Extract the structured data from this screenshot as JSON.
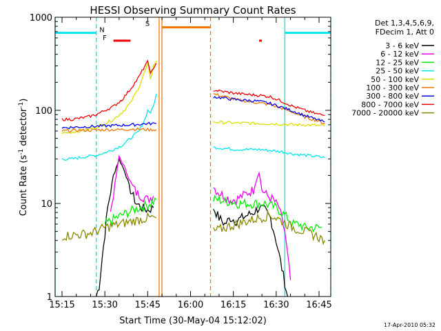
{
  "chart_data": {
    "type": "line",
    "title": "HESSI Observing Summary Count Rates",
    "xlabel": "Start Time (30-May-04 15:12:02)",
    "ylabel": "Count Rate (s",
    "ylabel_sup": "-1",
    "ylabel_mid": " detector",
    "ylabel_end": ")",
    "footer": "17-Apr-2010 05:32",
    "yscale": "log",
    "ylim": [
      1,
      1000
    ],
    "xlim_minutes": [
      15.17,
      16.83
    ],
    "x_ticks": [
      "15:15",
      "15:30",
      "15:45",
      "16:00",
      "16:15",
      "16:30",
      "16:45"
    ],
    "y_ticks": [
      "1",
      "10",
      "100",
      "1000"
    ],
    "legend_header": [
      "Det 1,3,4,5,6,9,",
      "FDecim 1, Att 0"
    ],
    "legend_placement": "right",
    "flags": [
      {
        "label": "N",
        "color": "#00e5ee",
        "level": 680,
        "intervals": [
          [
            "15:12",
            "15:27"
          ],
          [
            "16:33",
            "16:50"
          ]
        ]
      },
      {
        "label": "F",
        "color": "#ee0000",
        "level": 560,
        "intervals": [
          [
            "15:33",
            "15:39"
          ],
          [
            "16:24",
            "16:25"
          ]
        ]
      },
      {
        "label": "S",
        "color": "#ee7700",
        "level": 780,
        "intervals": [
          [
            "15:50",
            "16:07"
          ]
        ]
      }
    ],
    "markers": [
      {
        "type": "solid",
        "color": "#00e5ee",
        "time": "15:12"
      },
      {
        "type": "dashed",
        "color": "#00e5ee",
        "time": "15:27"
      },
      {
        "type": "solid",
        "color": "#ee7700",
        "time": "15:49"
      },
      {
        "type": "solid",
        "color": "#ee7700",
        "time": "15:50"
      },
      {
        "type": "dashed",
        "color": "#ee7700",
        "time": "16:07"
      },
      {
        "type": "solid",
        "color": "#00e5ee",
        "time": "16:33"
      },
      {
        "type": "dashed",
        "color": "#00e5ee",
        "time": "16:50"
      }
    ],
    "series": [
      {
        "name": "3 - 6 keV",
        "color": "#000000",
        "segments": [
          [
            [
              "15:27",
              1.0
            ],
            [
              "15:28",
              1.3
            ],
            [
              "15:29",
              2.5
            ],
            [
              "15:31",
              9
            ],
            [
              "15:33",
              20
            ],
            [
              "15:35",
              30
            ],
            [
              "15:37",
              22
            ],
            [
              "15:39",
              14
            ],
            [
              "15:41",
              10
            ],
            [
              "15:43",
              9
            ],
            [
              "15:45",
              8.5
            ],
            [
              "15:47",
              9
            ]
          ],
          [
            [
              "16:08",
              9
            ],
            [
              "16:10",
              7
            ],
            [
              "16:12",
              6
            ],
            [
              "16:14",
              7
            ],
            [
              "16:16",
              6.5
            ],
            [
              "16:18",
              7
            ],
            [
              "16:20",
              7.5
            ],
            [
              "16:22",
              8
            ],
            [
              "16:24",
              9
            ],
            [
              "16:26",
              8.5
            ],
            [
              "16:28",
              7
            ],
            [
              "16:30",
              4
            ],
            [
              "16:32",
              2
            ],
            [
              "16:34",
              1.0
            ]
          ]
        ]
      },
      {
        "name": "6 - 12 keV",
        "color": "#ee00ee",
        "segments": [
          [
            [
              "15:32",
              8
            ],
            [
              "15:34",
              20
            ],
            [
              "15:35",
              32
            ],
            [
              "15:37",
              24
            ],
            [
              "15:39",
              17
            ],
            [
              "15:41",
              13
            ],
            [
              "15:43",
              12
            ],
            [
              "15:45",
              11
            ],
            [
              "15:47",
              12
            ]
          ],
          [
            [
              "16:08",
              15
            ],
            [
              "16:10",
              13
            ],
            [
              "16:12",
              12
            ],
            [
              "16:14",
              11
            ],
            [
              "16:16",
              11
            ],
            [
              "16:18",
              12
            ],
            [
              "16:20",
              13
            ],
            [
              "16:22",
              14
            ],
            [
              "16:24",
              22
            ],
            [
              "16:25",
              14
            ],
            [
              "16:27",
              12
            ],
            [
              "16:29",
              11
            ],
            [
              "16:31",
              9
            ],
            [
              "16:33",
              5
            ],
            [
              "16:35",
              1.5
            ]
          ]
        ]
      },
      {
        "name": "12 - 25 keV",
        "color": "#00ee00",
        "segments": [
          [
            [
              "15:30",
              6
            ],
            [
              "15:32",
              6.5
            ],
            [
              "15:34",
              7
            ],
            [
              "15:36",
              7.5
            ],
            [
              "15:38",
              8
            ],
            [
              "15:40",
              8.5
            ],
            [
              "15:42",
              9
            ],
            [
              "15:44",
              9.5
            ],
            [
              "15:46",
              10
            ],
            [
              "15:48",
              11
            ]
          ],
          [
            [
              "16:08",
              11
            ],
            [
              "16:10",
              11
            ],
            [
              "16:12",
              10.5
            ],
            [
              "16:14",
              10.5
            ],
            [
              "16:16",
              10
            ],
            [
              "16:18",
              10
            ],
            [
              "16:20",
              10
            ],
            [
              "16:22",
              10
            ],
            [
              "16:24",
              10
            ],
            [
              "16:26",
              10
            ],
            [
              "16:28",
              9.5
            ],
            [
              "16:30",
              9
            ],
            [
              "16:32",
              8
            ],
            [
              "16:34",
              7
            ],
            [
              "16:36",
              6
            ],
            [
              "16:38",
              6
            ],
            [
              "16:40",
              5.5
            ],
            [
              "16:42",
              5.5
            ],
            [
              "16:44",
              5.5
            ],
            [
              "16:46",
              5.5
            ]
          ]
        ]
      },
      {
        "name": "25 - 50 keV",
        "color": "#00e5ee",
        "segments": [
          [
            [
              "15:15",
              30
            ],
            [
              "15:18",
              30
            ],
            [
              "15:21",
              31
            ],
            [
              "15:24",
              32
            ],
            [
              "15:27",
              33
            ],
            [
              "15:30",
              35
            ],
            [
              "15:33",
              38
            ],
            [
              "15:36",
              42
            ],
            [
              "15:39",
              50
            ],
            [
              "15:42",
              60
            ],
            [
              "15:44",
              80
            ],
            [
              "15:45",
              100
            ],
            [
              "15:46",
              95
            ],
            [
              "15:47",
              110
            ],
            [
              "15:48",
              150
            ]
          ],
          [
            [
              "16:08",
              40
            ],
            [
              "16:12",
              39
            ],
            [
              "16:16",
              38
            ],
            [
              "16:20",
              38
            ],
            [
              "16:24",
              38
            ],
            [
              "16:28",
              37
            ],
            [
              "16:32",
              36
            ],
            [
              "16:36",
              34
            ],
            [
              "16:40",
              33
            ],
            [
              "16:44",
              32
            ],
            [
              "16:47",
              31
            ]
          ]
        ]
      },
      {
        "name": "50 - 100 keV",
        "color": "#dddd00",
        "segments": [
          [
            [
              "15:15",
              57
            ],
            [
              "15:18",
              58
            ],
            [
              "15:21",
              60
            ],
            [
              "15:24",
              62
            ],
            [
              "15:27",
              66
            ],
            [
              "15:30",
              72
            ],
            [
              "15:33",
              80
            ],
            [
              "15:36",
              95
            ],
            [
              "15:39",
              120
            ],
            [
              "15:42",
              180
            ],
            [
              "15:44",
              260
            ],
            [
              "15:45",
              310
            ],
            [
              "15:46",
              220
            ],
            [
              "15:47",
              300
            ],
            [
              "15:48",
              340
            ]
          ],
          [
            [
              "16:08",
              75
            ],
            [
              "16:12",
              74
            ],
            [
              "16:16",
              73
            ],
            [
              "16:20",
              73
            ],
            [
              "16:24",
              72
            ],
            [
              "16:28",
              72
            ],
            [
              "16:32",
              71
            ],
            [
              "16:36",
              70
            ],
            [
              "16:40",
              70
            ],
            [
              "16:44",
              69
            ],
            [
              "16:47",
              68
            ]
          ]
        ]
      },
      {
        "name": "100 - 300 keV",
        "color": "#ee7700",
        "segments": [
          [
            [
              "15:15",
              60
            ],
            [
              "15:20",
              61
            ],
            [
              "15:25",
              61
            ],
            [
              "15:30",
              62
            ],
            [
              "15:35",
              62
            ],
            [
              "15:40",
              63
            ],
            [
              "15:45",
              62
            ],
            [
              "15:48",
              62
            ]
          ],
          [
            [
              "16:08",
              150
            ],
            [
              "16:12",
              140
            ],
            [
              "16:16",
              130
            ],
            [
              "16:20",
              125
            ],
            [
              "16:24",
              120
            ],
            [
              "16:28",
              115
            ],
            [
              "16:32",
              105
            ],
            [
              "16:36",
              95
            ],
            [
              "16:40",
              85
            ],
            [
              "16:44",
              78
            ],
            [
              "16:47",
              72
            ]
          ]
        ]
      },
      {
        "name": "300 - 800 keV",
        "color": "#0000ee",
        "segments": [
          [
            [
              "15:15",
              65
            ],
            [
              "15:20",
              66
            ],
            [
              "15:25",
              67
            ],
            [
              "15:30",
              68
            ],
            [
              "15:35",
              69
            ],
            [
              "15:40",
              70
            ],
            [
              "15:45",
              72
            ],
            [
              "15:48",
              72
            ]
          ],
          [
            [
              "16:08",
              140
            ],
            [
              "16:12",
              135
            ],
            [
              "16:16",
              130
            ],
            [
              "16:20",
              128
            ],
            [
              "16:24",
              125
            ],
            [
              "16:28",
              118
            ],
            [
              "16:32",
              108
            ],
            [
              "16:36",
              98
            ],
            [
              "16:40",
              88
            ],
            [
              "16:44",
              80
            ],
            [
              "16:47",
              75
            ]
          ]
        ]
      },
      {
        "name": "800 - 7000 keV",
        "color": "#ee0000",
        "segments": [
          [
            [
              "15:15",
              80
            ],
            [
              "15:18",
              80
            ],
            [
              "15:21",
              82
            ],
            [
              "15:24",
              85
            ],
            [
              "15:27",
              90
            ],
            [
              "15:30",
              100
            ],
            [
              "15:33",
              110
            ],
            [
              "15:36",
              130
            ],
            [
              "15:39",
              170
            ],
            [
              "15:42",
              230
            ],
            [
              "15:44",
              300
            ],
            [
              "15:45",
              330
            ],
            [
              "15:46",
              260
            ],
            [
              "15:47",
              270
            ],
            [
              "15:48",
              320
            ]
          ],
          [
            [
              "16:08",
              165
            ],
            [
              "16:12",
              158
            ],
            [
              "16:16",
              152
            ],
            [
              "16:20",
              148
            ],
            [
              "16:24",
              145
            ],
            [
              "16:28",
              140
            ],
            [
              "16:32",
              125
            ],
            [
              "16:36",
              110
            ],
            [
              "16:40",
              100
            ],
            [
              "16:44",
              92
            ],
            [
              "16:47",
              88
            ]
          ]
        ]
      },
      {
        "name": "7000 - 20000 keV",
        "color": "#888800",
        "segments": [
          [
            [
              "15:15",
              4.5
            ],
            [
              "15:20",
              4.6
            ],
            [
              "15:25",
              4.8
            ],
            [
              "15:30",
              5.5
            ],
            [
              "15:35",
              6
            ],
            [
              "15:40",
              6.5
            ],
            [
              "15:45",
              7
            ],
            [
              "15:48",
              7
            ]
          ],
          [
            [
              "16:08",
              5
            ],
            [
              "16:12",
              5.5
            ],
            [
              "16:16",
              6
            ],
            [
              "16:20",
              6.5
            ],
            [
              "16:24",
              7
            ],
            [
              "16:28",
              7.5
            ],
            [
              "16:32",
              6.5
            ],
            [
              "16:36",
              5.5
            ],
            [
              "16:40",
              5
            ],
            [
              "16:44",
              4.5
            ],
            [
              "16:47",
              4
            ]
          ]
        ]
      }
    ]
  }
}
